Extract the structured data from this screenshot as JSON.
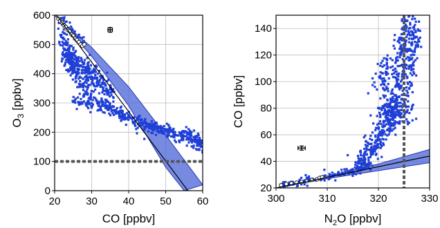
{
  "chart_data": [
    {
      "type": "scatter",
      "xlabel": "CO [ppbv]",
      "ylabel_main": "O",
      "ylabel_sub": "3",
      "ylabel_unit": " [ppbv]",
      "xlim": [
        20,
        60
      ],
      "ylim": [
        0,
        600
      ],
      "xticks": [
        20,
        30,
        40,
        50,
        60
      ],
      "yticks": [
        0,
        100,
        200,
        300,
        400,
        500,
        600
      ],
      "grid": true,
      "colors": {
        "points": "#1f3fd6",
        "band": "#4a63d8",
        "band_edge": "#2236b0",
        "fit": "#000000",
        "refline": "#555555"
      },
      "threshold_y": 100,
      "error_bar": {
        "x": 35,
        "y": 550,
        "dx": 0.6,
        "dy": 8
      },
      "fit_line": {
        "x0": 20.5,
        "y0": 600,
        "x1": 56,
        "y1": 0
      },
      "band_upper": [
        [
          20,
          600
        ],
        [
          30,
          490
        ],
        [
          40,
          355
        ],
        [
          50,
          190
        ],
        [
          60,
          20
        ]
      ],
      "band_lower": [
        [
          20,
          600
        ],
        [
          30,
          460
        ],
        [
          40,
          290
        ],
        [
          50,
          80
        ],
        [
          55,
          0
        ]
      ],
      "open_circles": [
        [
          21,
          588
        ],
        [
          21.5,
          580
        ],
        [
          22,
          575
        ],
        [
          22.5,
          565
        ],
        [
          23,
          560
        ],
        [
          23.5,
          550
        ],
        [
          24,
          545
        ],
        [
          24.5,
          535
        ],
        [
          25,
          530
        ],
        [
          25.5,
          520
        ],
        [
          26,
          515
        ],
        [
          26.5,
          508
        ],
        [
          27,
          500
        ],
        [
          27.5,
          495
        ],
        [
          28,
          500
        ]
      ],
      "clusters": [
        {
          "path": [
            [
              20.5,
              595
            ],
            [
              23,
              570
            ],
            [
              26,
              530
            ],
            [
              28,
              500
            ]
          ],
          "n": 50,
          "sx": 0.4,
          "sy": 10
        },
        {
          "path": [
            [
              22,
              545
            ],
            [
              23,
              470
            ],
            [
              24,
              440
            ],
            [
              25,
              420
            ],
            [
              27,
              395
            ],
            [
              30,
              380
            ],
            [
              33,
              360
            ],
            [
              36,
              330
            ]
          ],
          "n": 260,
          "sx": 0.6,
          "sy": 16
        },
        {
          "path": [
            [
              23,
              500
            ],
            [
              25,
              460
            ],
            [
              27,
              430
            ],
            [
              29,
              420
            ],
            [
              31,
              405
            ]
          ],
          "n": 110,
          "sx": 0.6,
          "sy": 14
        },
        {
          "path": [
            [
              26,
              370
            ],
            [
              30,
              320
            ],
            [
              34,
              290
            ],
            [
              38,
              260
            ],
            [
              42,
              240
            ],
            [
              46,
              220
            ],
            [
              50,
              205
            ],
            [
              54,
              190
            ],
            [
              58,
              170
            ],
            [
              60,
              150
            ]
          ],
          "n": 330,
          "sx": 0.7,
          "sy": 10
        },
        {
          "path": [
            [
              25,
              310
            ],
            [
              28,
              300
            ],
            [
              32,
              285
            ],
            [
              36,
              270
            ],
            [
              40,
              250
            ]
          ],
          "n": 90,
          "sx": 0.8,
          "sy": 12
        },
        {
          "path": [
            [
              45,
              215
            ],
            [
              50,
              205
            ],
            [
              55,
              195
            ],
            [
              60,
              185
            ]
          ],
          "n": 80,
          "sx": 1.2,
          "sy": 10
        }
      ]
    },
    {
      "type": "scatter",
      "xlabel_main": "N",
      "xlabel_sub": "2",
      "xlabel_unit": "O [ppbv]",
      "ylabel": "CO [ppbv]",
      "xlim": [
        300,
        330
      ],
      "ylim": [
        20,
        150
      ],
      "xticks": [
        300,
        310,
        320,
        330
      ],
      "yticks": [
        20,
        40,
        60,
        80,
        100,
        120,
        140
      ],
      "grid": true,
      "colors": {
        "points": "#1f3fd6",
        "band": "#4a63d8",
        "band_edge": "#2236b0",
        "fit": "#000000",
        "refline": "#555555"
      },
      "threshold_x": 325,
      "error_bar": {
        "x": 305,
        "y": 50,
        "dx": 0.7,
        "dy": 1.5
      },
      "fit_line": {
        "x0": 300,
        "y0": 20,
        "x1": 330,
        "y1": 44
      },
      "band_upper": [
        [
          300,
          20
        ],
        [
          310,
          29
        ],
        [
          320,
          38
        ],
        [
          330,
          49
        ]
      ],
      "band_lower": [
        [
          300,
          20
        ],
        [
          310,
          27
        ],
        [
          320,
          33
        ],
        [
          330,
          39
        ]
      ],
      "open_circles": [
        [
          301,
          22
        ],
        [
          302,
          23
        ],
        [
          303,
          23.5
        ],
        [
          304,
          24
        ],
        [
          305,
          24.5
        ],
        [
          306,
          25
        ],
        [
          307,
          26
        ],
        [
          308,
          26.5
        ],
        [
          308.5,
          27.5
        ],
        [
          309,
          28
        ]
      ],
      "clusters": [
        {
          "path": [
            [
              301,
              22
            ],
            [
              304,
              24
            ],
            [
              308,
              27
            ],
            [
              312,
              30
            ],
            [
              316,
              34
            ],
            [
              318,
              38
            ]
          ],
          "n": 170,
          "sx": 0.6,
          "sy": 1.5
        },
        {
          "path": [
            [
              316,
              38
            ],
            [
              318,
              45
            ],
            [
              320,
              55
            ],
            [
              321,
              62
            ],
            [
              322,
              70
            ],
            [
              323,
              77
            ]
          ],
          "n": 220,
          "sx": 0.8,
          "sy": 4
        },
        {
          "path": [
            [
              321,
              75
            ],
            [
              322.5,
              80
            ],
            [
              324,
              78
            ],
            [
              325,
              82
            ]
          ],
          "n": 160,
          "sx": 1.2,
          "sy": 6
        },
        {
          "path": [
            [
              323,
              85
            ],
            [
              324,
              100
            ],
            [
              324.5,
              115
            ],
            [
              325,
              125
            ],
            [
              325.5,
              135
            ],
            [
              326,
              145
            ]
          ],
          "n": 200,
          "sx": 0.9,
          "sy": 6
        },
        {
          "path": [
            [
              320,
              90
            ],
            [
              321,
              105
            ],
            [
              322,
              115
            ]
          ],
          "n": 60,
          "sx": 0.6,
          "sy": 8
        },
        {
          "path": [
            [
              326,
              95
            ],
            [
              326.5,
              110
            ],
            [
              327,
              130
            ],
            [
              327.5,
              140
            ]
          ],
          "n": 80,
          "sx": 0.5,
          "sy": 8
        }
      ]
    }
  ]
}
